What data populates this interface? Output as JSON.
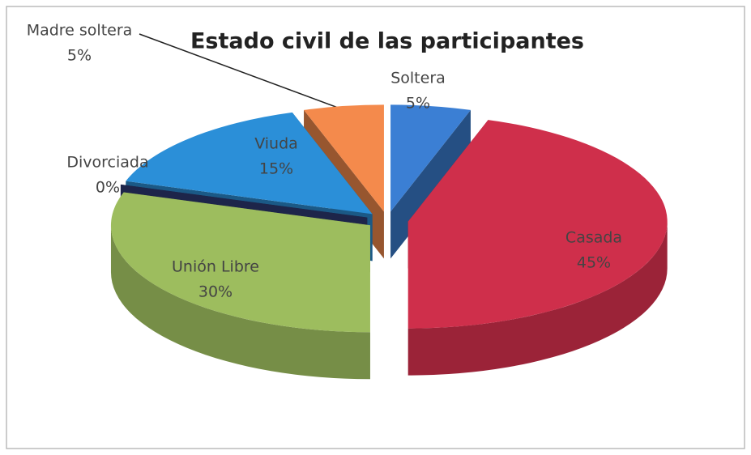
{
  "chart_data": {
    "type": "pie",
    "title": "Estado civil de las participantes",
    "categories": [
      "Soltera",
      "Casada",
      "Unión Libre",
      "Divorciada",
      "Viuda",
      "Madre soltera"
    ],
    "values": [
      5,
      45,
      30,
      0,
      15,
      5
    ],
    "value_labels": [
      "5%",
      "45%",
      "30%",
      "0%",
      "15%",
      "5%"
    ],
    "colors": [
      "#3b7fd4",
      "#cf2f4b",
      "#9dbd5e",
      "#2e3c78",
      "#2b8fd8",
      "#f48a4c"
    ]
  }
}
